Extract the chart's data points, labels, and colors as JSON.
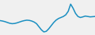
{
  "line_color": "#1a8fc1",
  "line_width": 1.1,
  "background_color": "#f0f0f0",
  "values": [
    0.0,
    -0.2,
    -0.5,
    -0.9,
    -1.3,
    -1.5,
    -1.4,
    -1.1,
    -0.7,
    -0.3,
    0.0,
    0.2,
    0.1,
    -0.2,
    -0.7,
    -1.5,
    -3.0,
    -4.5,
    -5.5,
    -5.2,
    -4.0,
    -2.5,
    -1.0,
    0.2,
    1.0,
    1.5,
    2.0,
    2.8,
    4.5,
    8.0,
    6.0,
    3.5,
    2.0,
    1.5,
    1.8,
    2.2,
    2.0,
    1.8,
    1.9,
    2.0
  ],
  "ylim": [
    -7,
    10
  ]
}
